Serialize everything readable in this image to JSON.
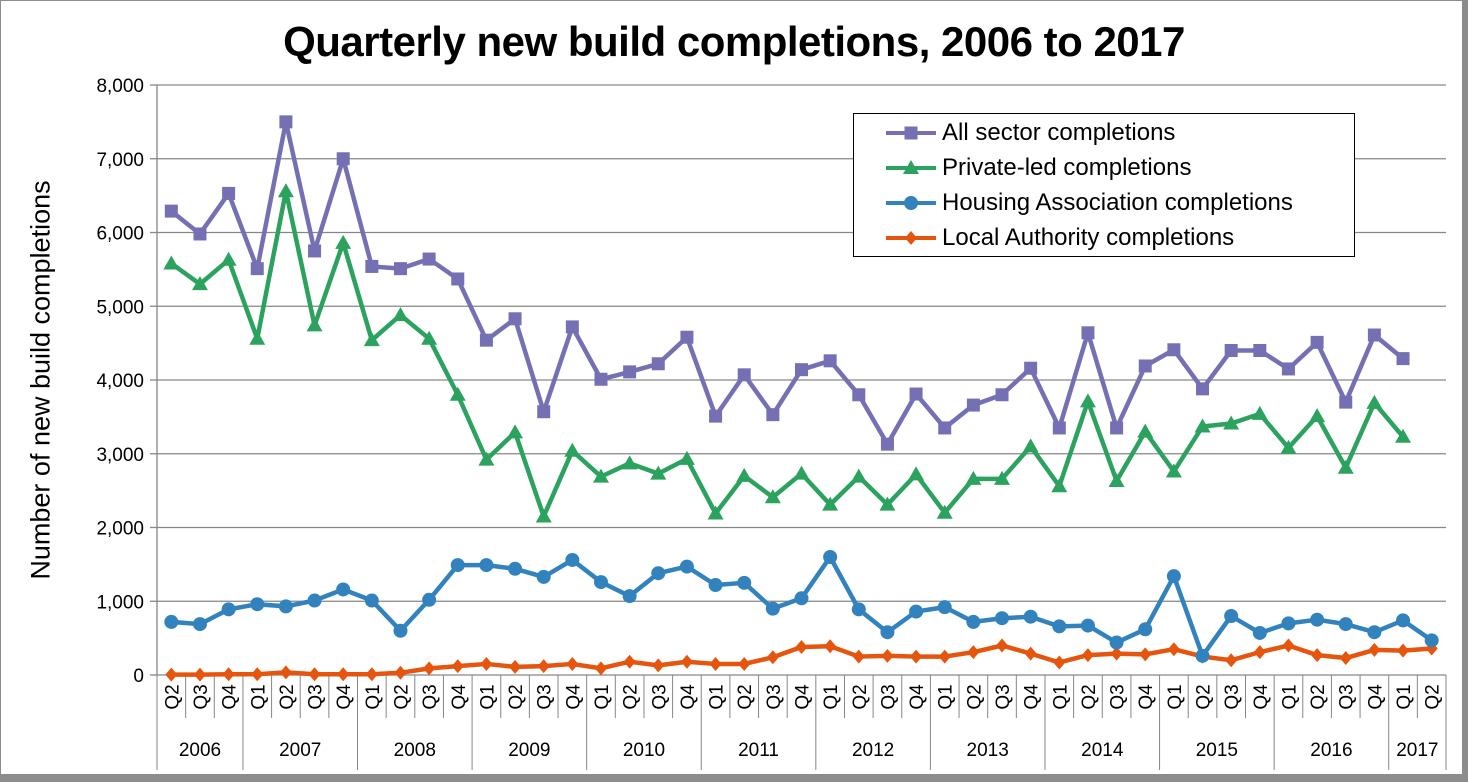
{
  "chart_data": {
    "type": "line",
    "title": "Quarterly new build completions, 2006 to 2017",
    "xlabel": "",
    "ylabel": "Number of new build completions",
    "ylim": [
      0,
      8000
    ],
    "yticks": [
      0,
      1000,
      2000,
      3000,
      4000,
      5000,
      6000,
      7000,
      8000
    ],
    "ytick_labels": [
      "0",
      "1,000",
      "2,000",
      "3,000",
      "4,000",
      "5,000",
      "6,000",
      "7,000",
      "8,000"
    ],
    "grid": true,
    "legend_position": "top-right",
    "categories": [
      "Q2",
      "Q3",
      "Q4",
      "Q1",
      "Q2",
      "Q3",
      "Q4",
      "Q1",
      "Q2",
      "Q3",
      "Q4",
      "Q1",
      "Q2",
      "Q3",
      "Q4",
      "Q1",
      "Q2",
      "Q3",
      "Q4",
      "Q1",
      "Q2",
      "Q3",
      "Q4",
      "Q1",
      "Q2",
      "Q3",
      "Q4",
      "Q1",
      "Q2",
      "Q3",
      "Q4",
      "Q1",
      "Q2",
      "Q3",
      "Q4",
      "Q1",
      "Q2",
      "Q3",
      "Q4",
      "Q1",
      "Q2",
      "Q3",
      "Q4",
      "Q1",
      "Q2"
    ],
    "year_groups": [
      {
        "label": "2006",
        "count": 3
      },
      {
        "label": "2007",
        "count": 4
      },
      {
        "label": "2008",
        "count": 4
      },
      {
        "label": "2009",
        "count": 4
      },
      {
        "label": "2010",
        "count": 4
      },
      {
        "label": "2011",
        "count": 4
      },
      {
        "label": "2012",
        "count": 4
      },
      {
        "label": "2013",
        "count": 4
      },
      {
        "label": "2014",
        "count": 4
      },
      {
        "label": "2015",
        "count": 4
      },
      {
        "label": "2016",
        "count": 4
      },
      {
        "label": "2017",
        "count": 2
      }
    ],
    "series": [
      {
        "name": "All sector completions",
        "color": "#7570b3",
        "marker": "square",
        "values": [
          6290,
          5980,
          6530,
          5510,
          7500,
          5750,
          7000,
          5540,
          5510,
          5640,
          5370,
          4540,
          4830,
          3570,
          4720,
          4010,
          4110,
          4220,
          4580,
          3510,
          4070,
          3530,
          4140,
          4260,
          3800,
          3130,
          3810,
          3350,
          3660,
          3800,
          4160,
          3350,
          4640,
          3350,
          4190,
          4410,
          3880,
          4400,
          4400,
          4150,
          4510,
          3700,
          4610,
          4290,
          null
        ]
      },
      {
        "name": "Private-led completions",
        "color": "#2ca25f",
        "marker": "triangle",
        "values": [
          5580,
          5300,
          5630,
          4560,
          6560,
          4740,
          5860,
          4540,
          4880,
          4560,
          3800,
          2920,
          3290,
          2150,
          3040,
          2690,
          2870,
          2730,
          2930,
          2190,
          2700,
          2410,
          2730,
          2310,
          2690,
          2310,
          2720,
          2200,
          2660,
          2660,
          3100,
          2560,
          3710,
          2630,
          3300,
          2760,
          3370,
          3410,
          3540,
          3080,
          3510,
          2810,
          3690,
          3230,
          null
        ]
      },
      {
        "name": "Housing Association completions",
        "color": "#3182bd",
        "marker": "circle",
        "values": [
          720,
          690,
          890,
          960,
          930,
          1010,
          1160,
          1010,
          600,
          1020,
          1490,
          1490,
          1440,
          1330,
          1560,
          1260,
          1070,
          1380,
          1470,
          1220,
          1250,
          900,
          1040,
          1600,
          890,
          580,
          860,
          920,
          720,
          770,
          790,
          660,
          670,
          440,
          620,
          1340,
          260,
          800,
          570,
          700,
          750,
          690,
          580,
          740,
          470
        ]
      },
      {
        "name": "Local Authority completions",
        "color": "#e6550d",
        "marker": "diamond",
        "values": [
          5,
          5,
          10,
          10,
          35,
          10,
          10,
          10,
          30,
          90,
          120,
          150,
          110,
          120,
          150,
          90,
          180,
          130,
          180,
          150,
          150,
          240,
          380,
          390,
          250,
          260,
          250,
          250,
          310,
          400,
          290,
          170,
          270,
          290,
          280,
          350,
          250,
          200,
          310,
          400,
          270,
          230,
          340,
          330,
          360
        ]
      }
    ]
  }
}
